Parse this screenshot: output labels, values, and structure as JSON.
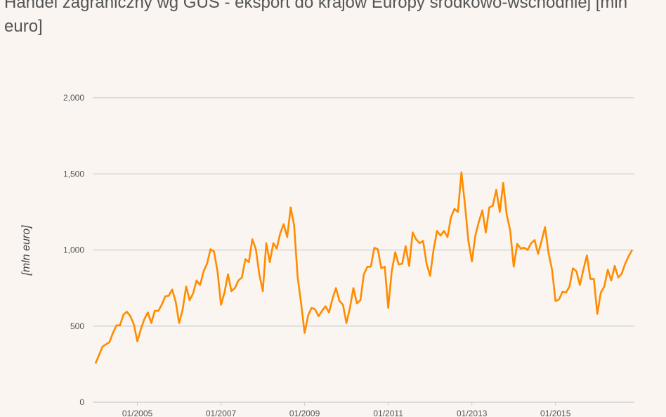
{
  "chart_data": {
    "type": "line",
    "title": "Handel zagraniczny wg GUS - eksport do krajów Europy środkowo-wschodniej [mln euro]",
    "xlabel": "",
    "ylabel": "[mln euro]",
    "ylim": [
      0,
      2000
    ],
    "y_ticks": [
      "0",
      "500",
      "1,000",
      "1,500",
      "2,000"
    ],
    "y_tick_values": [
      0,
      500,
      1000,
      1500,
      2000
    ],
    "x_ticks": [
      "01/2005",
      "01/2007",
      "01/2009",
      "01/2011",
      "01/2013",
      "01/2015"
    ],
    "x_start": "01/2004",
    "x_frequency": "monthly",
    "grid": true,
    "line_color": "#ff8c00",
    "series": [
      {
        "values": [
          255,
          310,
          365,
          380,
          395,
          455,
          505,
          505,
          575,
          595,
          565,
          510,
          400,
          480,
          545,
          590,
          520,
          600,
          600,
          640,
          695,
          700,
          740,
          660,
          520,
          610,
          760,
          670,
          715,
          800,
          770,
          860,
          910,
          1005,
          990,
          860,
          640,
          720,
          840,
          730,
          750,
          800,
          820,
          940,
          920,
          1070,
          1005,
          840,
          730,
          1045,
          920,
          1045,
          1010,
          1110,
          1170,
          1085,
          1280,
          1160,
          820,
          650,
          455,
          570,
          620,
          610,
          565,
          600,
          630,
          590,
          680,
          750,
          665,
          640,
          520,
          620,
          750,
          650,
          670,
          840,
          890,
          890,
          1015,
          1005,
          880,
          890,
          620,
          860,
          985,
          905,
          910,
          1025,
          895,
          1115,
          1070,
          1045,
          1060,
          910,
          830,
          1000,
          1125,
          1095,
          1125,
          1085,
          1215,
          1270,
          1250,
          1510,
          1300,
          1060,
          925,
          1095,
          1185,
          1260,
          1115,
          1280,
          1290,
          1395,
          1250,
          1440,
          1230,
          1130,
          890,
          1040,
          1010,
          1015,
          1000,
          1045,
          1065,
          975,
          1060,
          1150,
          980,
          870,
          665,
          675,
          725,
          720,
          760,
          880,
          860,
          770,
          870,
          965,
          810,
          810,
          580,
          720,
          760,
          870,
          800,
          895,
          820,
          845,
          910,
          960,
          1000
        ]
      }
    ]
  }
}
